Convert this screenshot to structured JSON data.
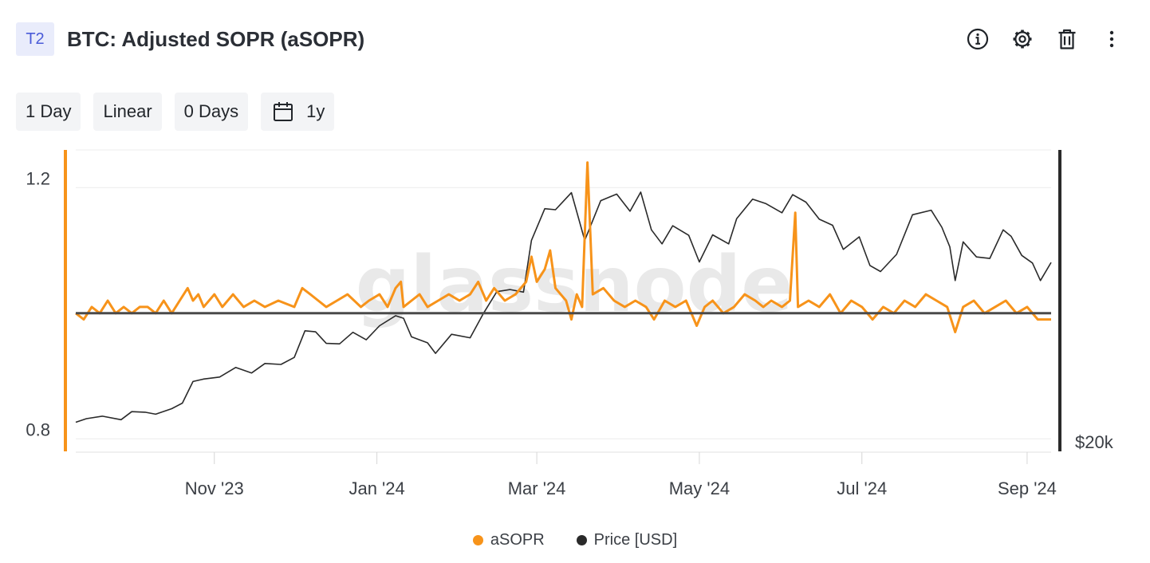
{
  "header": {
    "badge": "T2",
    "title": "BTC: Adjusted SOPR (aSOPR)",
    "actions": [
      {
        "icon": "info-icon"
      },
      {
        "icon": "gear-icon"
      },
      {
        "icon": "trash-icon"
      },
      {
        "icon": "more-vertical-icon"
      }
    ]
  },
  "toolbar": {
    "resolution": "1 Day",
    "scale": "Linear",
    "sma": "0 Days",
    "range_icon": "calendar-icon",
    "range": "1y"
  },
  "watermark": "glassnode",
  "colors": {
    "asopr": "#f7931a",
    "price": "#2a2a2a",
    "baseline": "#4a4a4a",
    "grid": "#ececec"
  },
  "chart_data": {
    "type": "line",
    "title": "",
    "x_start": "2023-09-10",
    "x_end": "2024-09-10",
    "x_ticks": [
      "Nov '23",
      "Jan '24",
      "Mar '24",
      "May '24",
      "Jul '24",
      "Sep '24"
    ],
    "x_tick_dates": [
      "2023-11-01",
      "2024-01-01",
      "2024-03-01",
      "2024-05-01",
      "2024-07-01",
      "2024-09-01"
    ],
    "left_axis": {
      "ticks": [
        "1.2",
        "0.8"
      ],
      "tick_values": [
        1.2,
        0.8
      ],
      "range": [
        0.78,
        1.26
      ],
      "color": "#f7931a"
    },
    "right_axis": {
      "ticks": [
        "$20k"
      ],
      "tick_values": [
        20000
      ],
      "range": [
        20000,
        80000
      ],
      "scale": "linear",
      "color": "#2a2a2a"
    },
    "reference_line": 1.0,
    "grid": true,
    "legend_position": "bottom",
    "series": [
      {
        "name": "aSOPR",
        "axis": "left",
        "color": "#f7931a",
        "points": [
          [
            "2023-09-10",
            1.0
          ],
          [
            "2023-09-13",
            0.99
          ],
          [
            "2023-09-16",
            1.01
          ],
          [
            "2023-09-19",
            1.0
          ],
          [
            "2023-09-22",
            1.02
          ],
          [
            "2023-09-25",
            1.0
          ],
          [
            "2023-09-28",
            1.01
          ],
          [
            "2023-10-01",
            1.0
          ],
          [
            "2023-10-04",
            1.01
          ],
          [
            "2023-10-07",
            1.01
          ],
          [
            "2023-10-10",
            1.0
          ],
          [
            "2023-10-13",
            1.02
          ],
          [
            "2023-10-16",
            1.0
          ],
          [
            "2023-10-19",
            1.02
          ],
          [
            "2023-10-22",
            1.04
          ],
          [
            "2023-10-24",
            1.02
          ],
          [
            "2023-10-26",
            1.03
          ],
          [
            "2023-10-28",
            1.01
          ],
          [
            "2023-11-01",
            1.03
          ],
          [
            "2023-11-04",
            1.01
          ],
          [
            "2023-11-08",
            1.03
          ],
          [
            "2023-11-12",
            1.01
          ],
          [
            "2023-11-16",
            1.02
          ],
          [
            "2023-11-20",
            1.01
          ],
          [
            "2023-11-25",
            1.02
          ],
          [
            "2023-12-01",
            1.01
          ],
          [
            "2023-12-04",
            1.04
          ],
          [
            "2023-12-07",
            1.03
          ],
          [
            "2023-12-10",
            1.02
          ],
          [
            "2023-12-13",
            1.01
          ],
          [
            "2023-12-17",
            1.02
          ],
          [
            "2023-12-21",
            1.03
          ],
          [
            "2023-12-26",
            1.01
          ],
          [
            "2023-12-29",
            1.02
          ],
          [
            "2024-01-02",
            1.03
          ],
          [
            "2024-01-05",
            1.01
          ],
          [
            "2024-01-08",
            1.04
          ],
          [
            "2024-01-10",
            1.05
          ],
          [
            "2024-01-11",
            1.01
          ],
          [
            "2024-01-14",
            1.02
          ],
          [
            "2024-01-17",
            1.03
          ],
          [
            "2024-01-20",
            1.01
          ],
          [
            "2024-01-24",
            1.02
          ],
          [
            "2024-01-28",
            1.03
          ],
          [
            "2024-02-01",
            1.02
          ],
          [
            "2024-02-05",
            1.03
          ],
          [
            "2024-02-08",
            1.05
          ],
          [
            "2024-02-11",
            1.02
          ],
          [
            "2024-02-14",
            1.04
          ],
          [
            "2024-02-18",
            1.02
          ],
          [
            "2024-02-22",
            1.03
          ],
          [
            "2024-02-26",
            1.05
          ],
          [
            "2024-02-28",
            1.09
          ],
          [
            "2024-03-01",
            1.05
          ],
          [
            "2024-03-04",
            1.07
          ],
          [
            "2024-03-06",
            1.1
          ],
          [
            "2024-03-08",
            1.04
          ],
          [
            "2024-03-12",
            1.02
          ],
          [
            "2024-03-14",
            0.99
          ],
          [
            "2024-03-16",
            1.03
          ],
          [
            "2024-03-18",
            1.01
          ],
          [
            "2024-03-20",
            1.24
          ],
          [
            "2024-03-22",
            1.03
          ],
          [
            "2024-03-26",
            1.04
          ],
          [
            "2024-03-30",
            1.02
          ],
          [
            "2024-04-03",
            1.01
          ],
          [
            "2024-04-07",
            1.02
          ],
          [
            "2024-04-11",
            1.01
          ],
          [
            "2024-04-14",
            0.99
          ],
          [
            "2024-04-18",
            1.02
          ],
          [
            "2024-04-22",
            1.01
          ],
          [
            "2024-04-26",
            1.02
          ],
          [
            "2024-04-30",
            0.98
          ],
          [
            "2024-05-03",
            1.01
          ],
          [
            "2024-05-06",
            1.02
          ],
          [
            "2024-05-10",
            1.0
          ],
          [
            "2024-05-14",
            1.01
          ],
          [
            "2024-05-18",
            1.03
          ],
          [
            "2024-05-22",
            1.02
          ],
          [
            "2024-05-25",
            1.01
          ],
          [
            "2024-05-28",
            1.02
          ],
          [
            "2024-06-01",
            1.01
          ],
          [
            "2024-06-04",
            1.02
          ],
          [
            "2024-06-06",
            1.16
          ],
          [
            "2024-06-07",
            1.01
          ],
          [
            "2024-06-11",
            1.02
          ],
          [
            "2024-06-15",
            1.01
          ],
          [
            "2024-06-19",
            1.03
          ],
          [
            "2024-06-23",
            1.0
          ],
          [
            "2024-06-27",
            1.02
          ],
          [
            "2024-07-01",
            1.01
          ],
          [
            "2024-07-05",
            0.99
          ],
          [
            "2024-07-09",
            1.01
          ],
          [
            "2024-07-13",
            1.0
          ],
          [
            "2024-07-17",
            1.02
          ],
          [
            "2024-07-21",
            1.01
          ],
          [
            "2024-07-25",
            1.03
          ],
          [
            "2024-07-29",
            1.02
          ],
          [
            "2024-08-02",
            1.01
          ],
          [
            "2024-08-05",
            0.97
          ],
          [
            "2024-08-08",
            1.01
          ],
          [
            "2024-08-12",
            1.02
          ],
          [
            "2024-08-16",
            1.0
          ],
          [
            "2024-08-20",
            1.01
          ],
          [
            "2024-08-24",
            1.02
          ],
          [
            "2024-08-28",
            1.0
          ],
          [
            "2024-09-01",
            1.01
          ],
          [
            "2024-09-05",
            0.99
          ],
          [
            "2024-09-10",
            0.99
          ]
        ]
      },
      {
        "name": "Price [USD]",
        "axis": "right",
        "color": "#2a2a2a",
        "points": [
          [
            "2023-09-10",
            25800
          ],
          [
            "2023-09-14",
            26500
          ],
          [
            "2023-09-20",
            27000
          ],
          [
            "2023-09-27",
            26300
          ],
          [
            "2023-10-01",
            27900
          ],
          [
            "2023-10-06",
            27800
          ],
          [
            "2023-10-10",
            27400
          ],
          [
            "2023-10-16",
            28500
          ],
          [
            "2023-10-20",
            29600
          ],
          [
            "2023-10-24",
            33900
          ],
          [
            "2023-10-28",
            34400
          ],
          [
            "2023-11-03",
            34800
          ],
          [
            "2023-11-09",
            36700
          ],
          [
            "2023-11-15",
            35600
          ],
          [
            "2023-11-20",
            37500
          ],
          [
            "2023-11-26",
            37300
          ],
          [
            "2023-12-01",
            38700
          ],
          [
            "2023-12-05",
            44000
          ],
          [
            "2023-12-09",
            43800
          ],
          [
            "2023-12-13",
            41500
          ],
          [
            "2023-12-18",
            41400
          ],
          [
            "2023-12-23",
            43700
          ],
          [
            "2023-12-28",
            42200
          ],
          [
            "2024-01-02",
            45000
          ],
          [
            "2024-01-08",
            47000
          ],
          [
            "2024-01-11",
            46500
          ],
          [
            "2024-01-14",
            42800
          ],
          [
            "2024-01-20",
            41600
          ],
          [
            "2024-01-23",
            39500
          ],
          [
            "2024-01-29",
            43300
          ],
          [
            "2024-02-05",
            42600
          ],
          [
            "2024-02-10",
            47500
          ],
          [
            "2024-02-15",
            51800
          ],
          [
            "2024-02-20",
            52200
          ],
          [
            "2024-02-25",
            51700
          ],
          [
            "2024-02-28",
            62000
          ],
          [
            "2024-03-04",
            68300
          ],
          [
            "2024-03-08",
            68100
          ],
          [
            "2024-03-14",
            71500
          ],
          [
            "2024-03-19",
            62000
          ],
          [
            "2024-03-25",
            69900
          ],
          [
            "2024-03-31",
            71200
          ],
          [
            "2024-04-05",
            67800
          ],
          [
            "2024-04-09",
            71600
          ],
          [
            "2024-04-13",
            64100
          ],
          [
            "2024-04-17",
            61300
          ],
          [
            "2024-04-21",
            64900
          ],
          [
            "2024-04-27",
            63000
          ],
          [
            "2024-05-01",
            57700
          ],
          [
            "2024-05-06",
            63100
          ],
          [
            "2024-05-12",
            61300
          ],
          [
            "2024-05-15",
            66300
          ],
          [
            "2024-05-21",
            70200
          ],
          [
            "2024-05-26",
            69300
          ],
          [
            "2024-06-01",
            67500
          ],
          [
            "2024-06-05",
            71100
          ],
          [
            "2024-06-10",
            69600
          ],
          [
            "2024-06-15",
            66200
          ],
          [
            "2024-06-20",
            65000
          ],
          [
            "2024-06-24",
            60200
          ],
          [
            "2024-06-30",
            62700
          ],
          [
            "2024-07-04",
            57000
          ],
          [
            "2024-07-08",
            55800
          ],
          [
            "2024-07-14",
            59200
          ],
          [
            "2024-07-20",
            67100
          ],
          [
            "2024-07-27",
            68000
          ],
          [
            "2024-07-31",
            64600
          ],
          [
            "2024-08-03",
            60700
          ],
          [
            "2024-08-05",
            54000
          ],
          [
            "2024-08-08",
            61700
          ],
          [
            "2024-08-13",
            58700
          ],
          [
            "2024-08-18",
            58400
          ],
          [
            "2024-08-23",
            64100
          ],
          [
            "2024-08-26",
            62800
          ],
          [
            "2024-08-30",
            59000
          ],
          [
            "2024-09-03",
            57500
          ],
          [
            "2024-09-06",
            54000
          ],
          [
            "2024-09-10",
            57600
          ]
        ]
      }
    ]
  }
}
